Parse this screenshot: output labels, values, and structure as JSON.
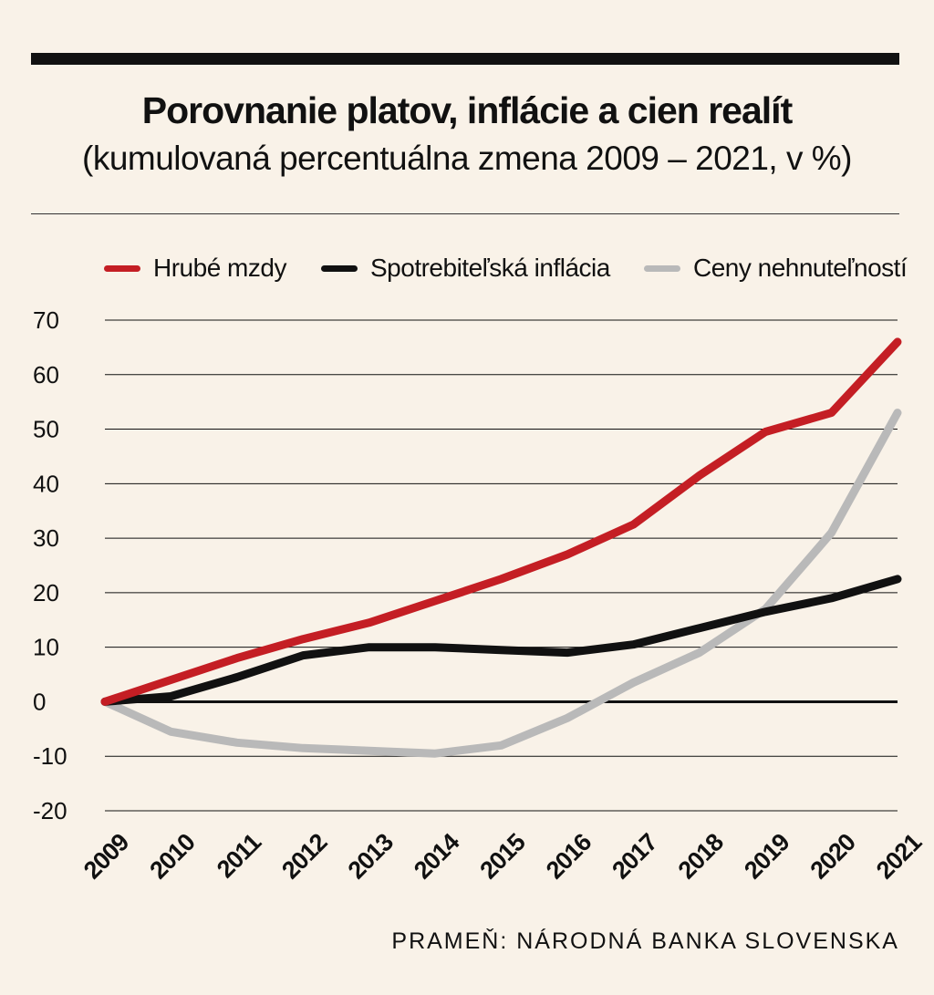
{
  "title": "Porovnanie platov, inflácie a cien realít",
  "subtitle": "(kumulovaná percentuálna zmena 2009 – 2021, v %)",
  "source": "PRAMEŇ: NÁRODNÁ BANKA SLOVENSKA",
  "legend": [
    {
      "label": "Hrubé mzdy",
      "color": "#c41e24"
    },
    {
      "label": "Spotrebiteľská inflácia",
      "color": "#111111"
    },
    {
      "label": "Ceny nehnuteľností",
      "color": "#b9b9b9"
    }
  ],
  "chart_data": {
    "type": "line",
    "title": "Porovnanie platov, inflácie a cien realít",
    "subtitle": "(kumulovaná percentuálna zmena 2009 – 2021, v %)",
    "xlabel": "",
    "ylabel": "",
    "x": [
      "2009",
      "2010",
      "2011",
      "2012",
      "2013",
      "2014",
      "2015",
      "2016",
      "2017",
      "2018",
      "2019",
      "2020",
      "2021"
    ],
    "ylim": [
      -20,
      70
    ],
    "yticks": [
      "70",
      "60",
      "50",
      "40",
      "30",
      "20",
      "10",
      "0",
      "-10",
      "-20"
    ],
    "grid": true,
    "legend_position": "top",
    "series": [
      {
        "name": "Hrubé mzdy",
        "color": "#c41e24",
        "values": [
          0,
          4,
          8,
          11.5,
          14.5,
          18.5,
          22.5,
          27,
          32.5,
          41.5,
          49.5,
          53,
          66
        ]
      },
      {
        "name": "Spotrebiteľská inflácia",
        "color": "#111111",
        "values": [
          0,
          1,
          4.5,
          8.5,
          10,
          10,
          9.5,
          9,
          10.5,
          13.5,
          16.5,
          19,
          22.5
        ]
      },
      {
        "name": "Ceny nehnuteľností",
        "color": "#b9b9b9",
        "values": [
          0,
          -5.5,
          -7.5,
          -8.5,
          -9,
          -9.5,
          -8,
          -3,
          3.5,
          9,
          17,
          31,
          53
        ]
      }
    ]
  }
}
